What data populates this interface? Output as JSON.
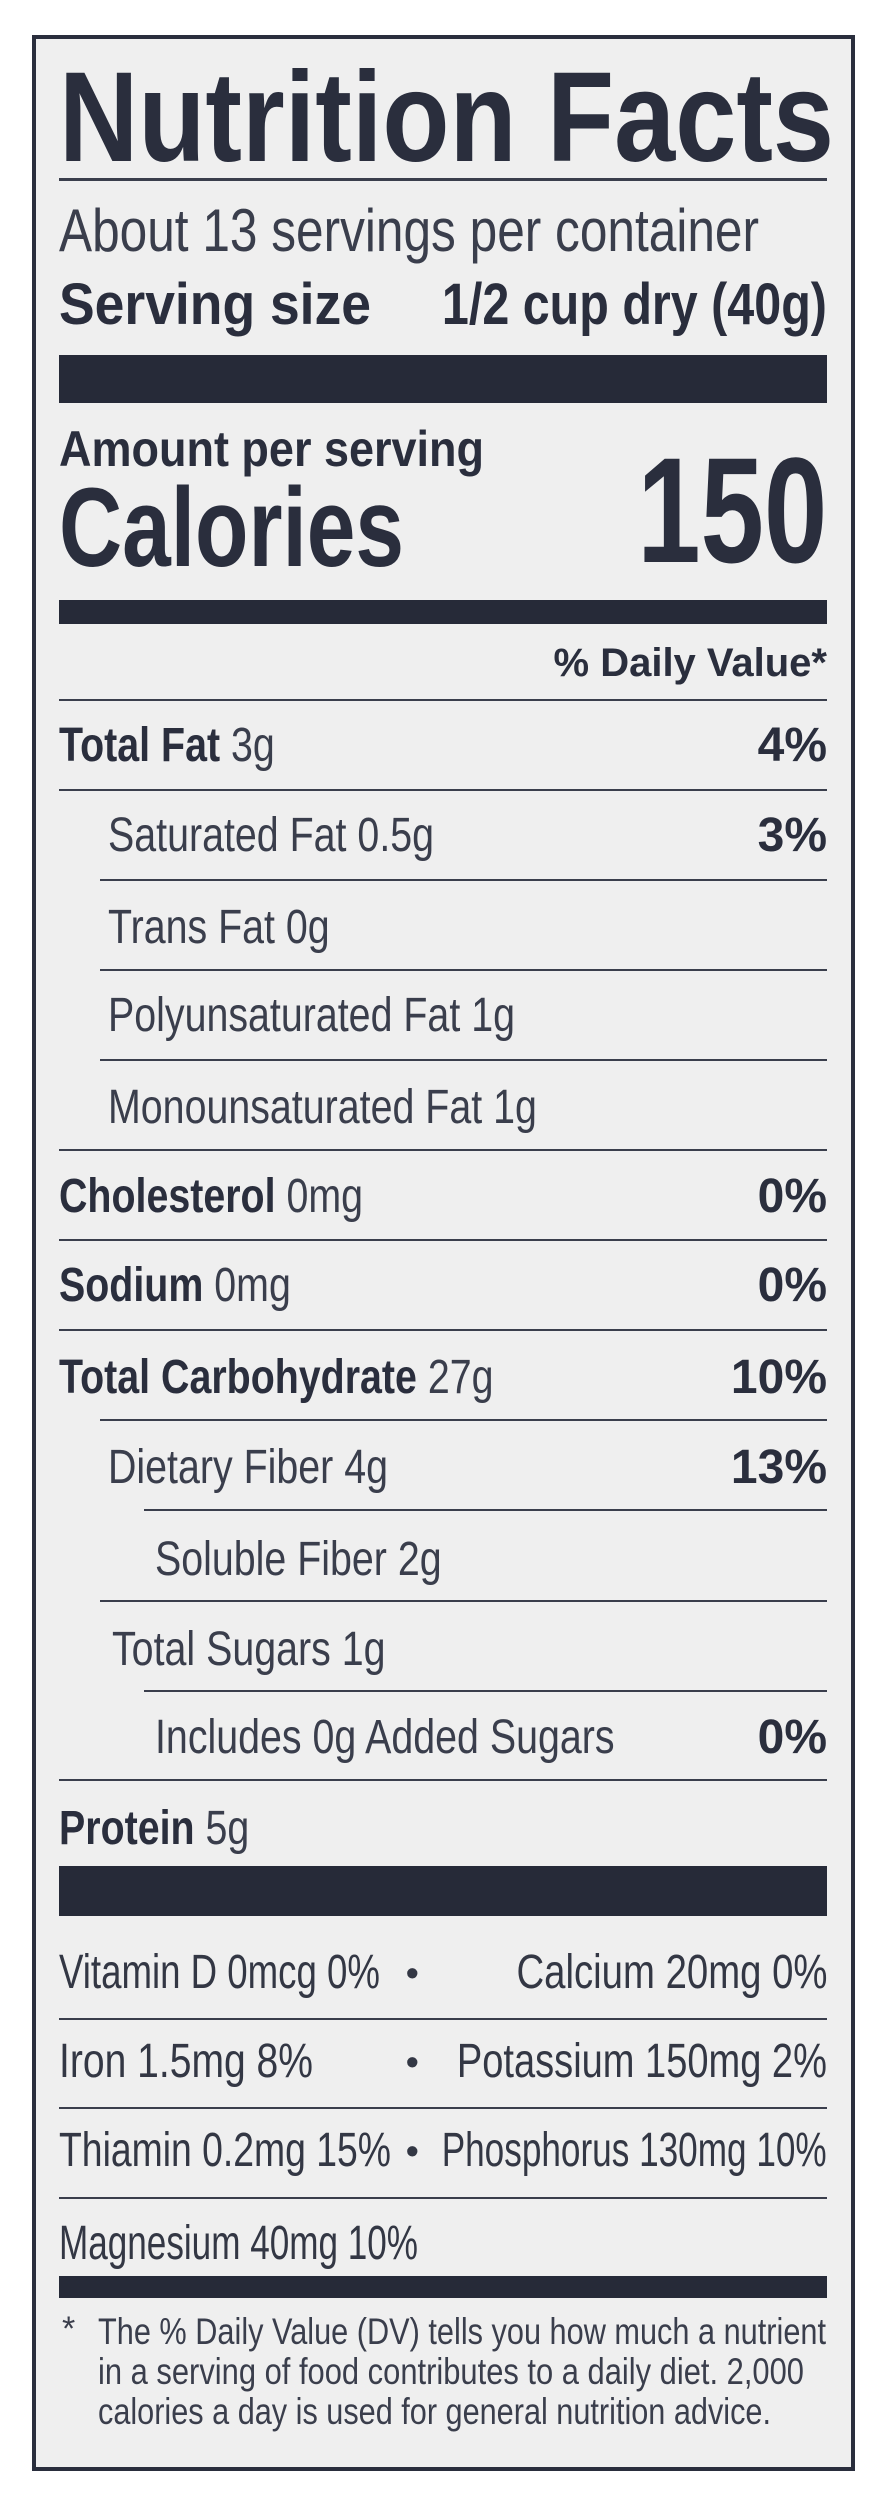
{
  "title": "Nutrition Facts",
  "servings_per_container": "About 13 servings per container",
  "serving_size": {
    "label": "Serving size",
    "value": "1/2 cup dry (40g)"
  },
  "amount_per_serving": "Amount per serving",
  "calories": {
    "label": "Calories",
    "value": "150"
  },
  "daily_value_header": "% Daily Value*",
  "nutrients": [
    {
      "name": "Total Fat",
      "amount": "3g",
      "dv": "4%"
    },
    {
      "name": "Saturated Fat",
      "amount": "0.5g",
      "dv": "3%"
    },
    {
      "name": "Trans Fat",
      "amount": "0g",
      "dv": ""
    },
    {
      "name": "Polyunsaturated Fat",
      "amount": "1g",
      "dv": ""
    },
    {
      "name": "Monounsaturated Fat",
      "amount": "1g",
      "dv": ""
    },
    {
      "name": "Cholesterol",
      "amount": "0mg",
      "dv": "0%"
    },
    {
      "name": "Sodium",
      "amount": "0mg",
      "dv": "0%"
    },
    {
      "name": "Total Carbohydrate",
      "amount": "27g",
      "dv": "10%"
    },
    {
      "name": "Dietary Fiber",
      "amount": "4g",
      "dv": "13%"
    },
    {
      "name": "Soluble Fiber",
      "amount": "2g",
      "dv": ""
    },
    {
      "name": "Total Sugars",
      "amount": "1g",
      "dv": ""
    },
    {
      "name": "Includes 0g Added Sugars",
      "amount": "",
      "dv": "0%"
    },
    {
      "name": "Protein",
      "amount": "5g",
      "dv": ""
    }
  ],
  "micronutrients": [
    {
      "left": "Vitamin D 0mcg 0%",
      "right": "Calcium 20mg 0%"
    },
    {
      "left": "Iron 1.5mg 8%",
      "right": "Potassium 150mg 2%"
    },
    {
      "left": "Thiamin 0.2mg 15%",
      "right": "Phosphorus 130mg 10%"
    },
    {
      "left": "Magnesium 40mg 10%",
      "right": ""
    }
  ],
  "bullet": "•",
  "footnote": {
    "asterisk": "*",
    "lines": [
      "The % Daily Value (DV) tells you how much a nutrient",
      "in a serving of food contributes to a daily diet. 2,000",
      "calories a day is used for general nutrition advice."
    ]
  },
  "colors": {
    "ink": "#2a2e3d",
    "background": "#efefef"
  }
}
